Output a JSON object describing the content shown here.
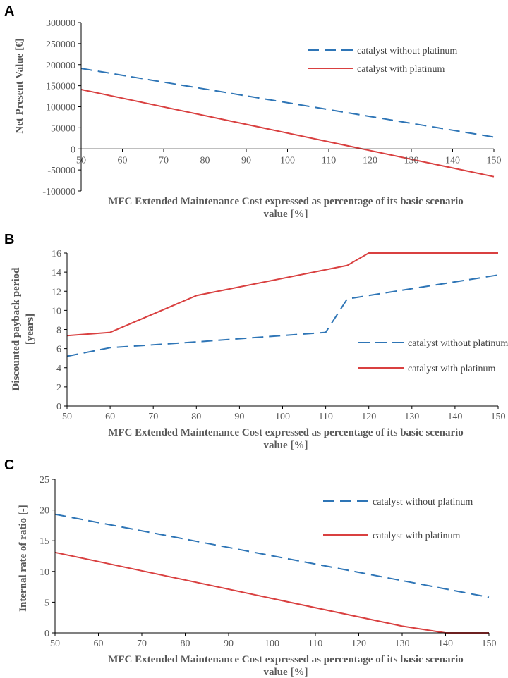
{
  "chart_data": [
    {
      "panel": "A",
      "type": "line",
      "x": [
        50,
        150
      ],
      "series": [
        {
          "name": "catalyst without platinum",
          "color": "#2E75B6",
          "dash": true,
          "points": [
            [
              50,
              191000
            ],
            [
              150,
              28000
            ]
          ]
        },
        {
          "name": "catalyst with platinum",
          "color": "#D94040",
          "dash": false,
          "points": [
            [
              50,
              141000
            ],
            [
              150,
              -66000
            ]
          ]
        }
      ],
      "xlabel_line1": "MFC Extended Maintenance Cost expressed as percentage of its basic scenario",
      "xlabel_line2": "value [%]",
      "ylabel": "Net Present Value [€]",
      "ylabel_line2": "",
      "xlim": [
        50,
        150
      ],
      "ylim": [
        -100000,
        300000
      ],
      "xticks": [
        50,
        60,
        70,
        80,
        90,
        100,
        110,
        120,
        130,
        140,
        150
      ],
      "yticks": [
        -100000,
        -50000,
        0,
        50000,
        100000,
        150000,
        200000,
        250000,
        300000
      ],
      "legend": "top-right"
    },
    {
      "panel": "B",
      "type": "line",
      "x": [
        50,
        150
      ],
      "series": [
        {
          "name": "catalyst without platinum",
          "color": "#2E75B6",
          "dash": true,
          "points": [
            [
              50,
              5.2
            ],
            [
              60,
              6.1
            ],
            [
              80,
              6.7
            ],
            [
              110,
              7.7
            ],
            [
              115,
              11.2
            ],
            [
              150,
              13.7
            ]
          ]
        },
        {
          "name": "catalyst with platinum",
          "color": "#D94040",
          "dash": false,
          "points": [
            [
              50,
              7.35
            ],
            [
              60,
              7.7
            ],
            [
              80,
              11.55
            ],
            [
              115,
              14.7
            ],
            [
              120,
              16
            ],
            [
              150,
              16
            ]
          ]
        }
      ],
      "xlabel_line1": "MFC Extended Maintenance Cost expressed as percentage of its basic scenario",
      "xlabel_line2": "value [%]",
      "ylabel": "Discounted payback period",
      "ylabel_line2": "[years]",
      "xlim": [
        50,
        150
      ],
      "ylim": [
        0,
        16
      ],
      "xticks": [
        50,
        60,
        70,
        80,
        90,
        100,
        110,
        120,
        130,
        140,
        150
      ],
      "yticks": [
        0,
        2,
        4,
        6,
        8,
        10,
        12,
        14,
        16
      ],
      "legend": "right"
    },
    {
      "panel": "C",
      "type": "line",
      "x": [
        50,
        150
      ],
      "series": [
        {
          "name": "catalyst without platinum",
          "color": "#2E75B6",
          "dash": true,
          "points": [
            [
              50,
              19.3
            ],
            [
              150,
              5.8
            ]
          ]
        },
        {
          "name": "catalyst with platinum",
          "color": "#D94040",
          "dash": false,
          "points": [
            [
              50,
              13.1
            ],
            [
              60,
              11.6
            ],
            [
              130,
              1.1
            ],
            [
              140,
              0
            ],
            [
              150,
              0
            ]
          ]
        }
      ],
      "xlabel_line1": "MFC Extended Maintenance Cost expressed as percentage of its basic scenario",
      "xlabel_line2": "value [%]",
      "ylabel": "Internal rate of ratio [-]",
      "ylabel_line2": "",
      "xlim": [
        50,
        150
      ],
      "ylim": [
        0,
        25
      ],
      "xticks": [
        50,
        60,
        70,
        80,
        90,
        100,
        110,
        120,
        130,
        140,
        150
      ],
      "yticks": [
        0,
        5,
        10,
        15,
        20,
        25
      ],
      "legend": "top-right"
    }
  ]
}
